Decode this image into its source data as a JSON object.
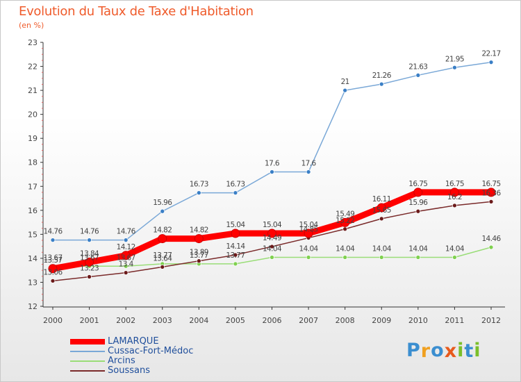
{
  "chart_data": {
    "type": "line",
    "title": "Evolution du Taux de Taxe d'Habitation",
    "subtitle": "(en %)",
    "x": [
      "2000",
      "2001",
      "2002",
      "2003",
      "2004",
      "2005",
      "2006",
      "2007",
      "2008",
      "2009",
      "2010",
      "2011",
      "2012"
    ],
    "ylim": [
      12,
      23
    ],
    "yticks": [
      "12",
      "13",
      "14",
      "15",
      "16",
      "17",
      "18",
      "19",
      "20",
      "21",
      "22",
      "23"
    ],
    "grid": false,
    "legend_position": "bottom-left",
    "series": [
      {
        "name": "LAMARQUE",
        "color": "#ff0000",
        "marker_color": "#ff0000",
        "values": [
          13.57,
          13.84,
          14.12,
          14.82,
          14.82,
          15.04,
          15.04,
          15.04,
          15.49,
          16.11,
          16.75,
          16.75,
          16.75
        ],
        "labels": [
          "13.57",
          "13.84",
          "14.12",
          "14.82",
          "14.82",
          "15.04",
          "15.04",
          "15.04",
          "15.49",
          "16.11",
          "16.75",
          "16.75",
          "16.75"
        ]
      },
      {
        "name": "Cussac-Fort-Médoc",
        "color": "#7aa8d7",
        "marker_color": "#3a7fc6",
        "values": [
          14.76,
          14.76,
          14.76,
          15.96,
          16.73,
          16.73,
          17.6,
          17.6,
          21,
          21.26,
          21.63,
          21.95,
          22.17
        ],
        "labels": [
          "14.76",
          "14.76",
          "14.76",
          "15.96",
          "16.73",
          "16.73",
          "17.6",
          "17.6",
          "21",
          "21.26",
          "21.63",
          "21.95",
          "22.17"
        ]
      },
      {
        "name": "Arcins",
        "color": "#99dd77",
        "marker_color": "#7fd04f",
        "values": [
          13.67,
          13.67,
          13.67,
          13.77,
          13.77,
          13.77,
          14.04,
          14.04,
          14.04,
          14.04,
          14.04,
          14.04,
          14.46
        ],
        "labels": [
          "13.67",
          "13.67",
          "13.67",
          "13.77",
          "13.77",
          "13.77",
          "14.04",
          "14.04",
          "14.04",
          "14.04",
          "14.04",
          "14.04",
          "14.46"
        ]
      },
      {
        "name": "Soussans",
        "color": "#7a2a2a",
        "marker_color": "#6b1a1a",
        "values": [
          13.06,
          13.23,
          13.4,
          13.64,
          13.89,
          14.14,
          14.49,
          14.85,
          15.22,
          15.65,
          15.96,
          16.2,
          16.36
        ],
        "labels": [
          "13.06",
          "13.23",
          "13.4",
          "13.64",
          "13.89",
          "14.14",
          "14.49",
          "14.85",
          "15.22",
          "15.65",
          "15.96",
          "16.2",
          "16.36"
        ]
      }
    ]
  },
  "legend": {
    "items": [
      {
        "label": "LAMARQUE",
        "color": "#ff0000"
      },
      {
        "label": "Cussac-Fort-Médoc",
        "color": "#7aa8d7"
      },
      {
        "label": "Arcins",
        "color": "#99dd77"
      },
      {
        "label": "Soussans",
        "color": "#7a2a2a"
      }
    ]
  },
  "logo": {
    "text": "Proxiti",
    "letters": [
      "P",
      "r",
      "o",
      "x",
      "i",
      "t",
      "i"
    ],
    "colors": [
      "#3b8ed0",
      "#f0a020",
      "#3b8ed0",
      "#e85a1c",
      "#7bbf2a",
      "#3b8ed0",
      "#7bbf2a"
    ]
  }
}
